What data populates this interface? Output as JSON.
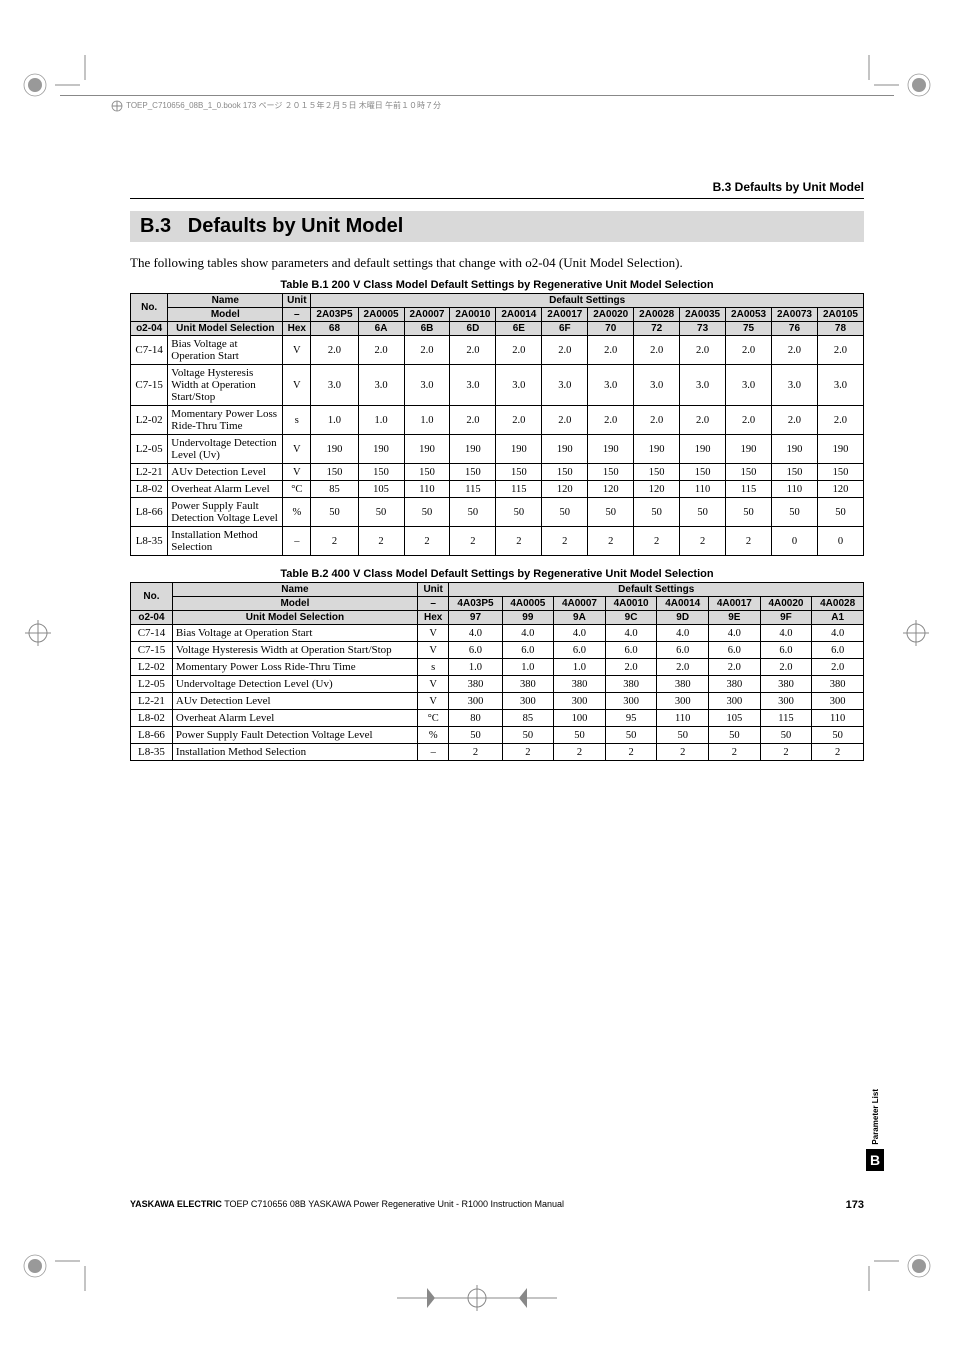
{
  "header": {
    "file_info": "TOEP_C710656_08B_1_0.book  173 ページ  ２０１５年２月５日  木曜日  午前１０時７分",
    "section_label": "B.3  Defaults by Unit Model"
  },
  "section": {
    "number": "B.3",
    "title": "Defaults by Unit Model",
    "intro": "The following tables show parameters and default settings that change with o2-04 (Unit Model Selection)."
  },
  "table1": {
    "caption": "Table B.1  200 V Class Model Default Settings by Regenerative Unit Model Selection",
    "col_no": "No.",
    "col_name": "Name",
    "col_unit": "Unit",
    "col_defaults": "Default Settings",
    "row_model_label": "Model",
    "row_model_unit": "–",
    "models": [
      "2A03P5",
      "2A0005",
      "2A0007",
      "2A0010",
      "2A0014",
      "2A0017",
      "2A0020",
      "2A0028",
      "2A0035",
      "2A0053",
      "2A0073",
      "2A0105"
    ],
    "row_o2_no": "o2-04",
    "row_o2_name": "Unit Model Selection",
    "row_o2_unit": "Hex",
    "hex": [
      "68",
      "6A",
      "6B",
      "6D",
      "6E",
      "6F",
      "70",
      "72",
      "73",
      "75",
      "76",
      "78"
    ],
    "rows": [
      {
        "no": "C7-14",
        "name": "Bias Voltage at Operation Start",
        "unit": "V",
        "v": [
          "2.0",
          "2.0",
          "2.0",
          "2.0",
          "2.0",
          "2.0",
          "2.0",
          "2.0",
          "2.0",
          "2.0",
          "2.0",
          "2.0"
        ]
      },
      {
        "no": "C7-15",
        "name": "Voltage Hysteresis Width at Operation Start/Stop",
        "unit": "V",
        "v": [
          "3.0",
          "3.0",
          "3.0",
          "3.0",
          "3.0",
          "3.0",
          "3.0",
          "3.0",
          "3.0",
          "3.0",
          "3.0",
          "3.0"
        ]
      },
      {
        "no": "L2-02",
        "name": "Momentary Power Loss Ride-Thru Time",
        "unit": "s",
        "v": [
          "1.0",
          "1.0",
          "1.0",
          "2.0",
          "2.0",
          "2.0",
          "2.0",
          "2.0",
          "2.0",
          "2.0",
          "2.0",
          "2.0"
        ]
      },
      {
        "no": "L2-05",
        "name": "Undervoltage Detection Level (Uv)",
        "unit": "V",
        "v": [
          "190",
          "190",
          "190",
          "190",
          "190",
          "190",
          "190",
          "190",
          "190",
          "190",
          "190",
          "190"
        ]
      },
      {
        "no": "L2-21",
        "name": "AUv Detection Level",
        "unit": "V",
        "v": [
          "150",
          "150",
          "150",
          "150",
          "150",
          "150",
          "150",
          "150",
          "150",
          "150",
          "150",
          "150"
        ]
      },
      {
        "no": "L8-02",
        "name": "Overheat Alarm Level",
        "unit": "°C",
        "v": [
          "85",
          "105",
          "110",
          "115",
          "115",
          "120",
          "120",
          "120",
          "110",
          "115",
          "110",
          "120"
        ]
      },
      {
        "no": "L8-66",
        "name": "Power Supply Fault Detection Voltage Level",
        "unit": "%",
        "v": [
          "50",
          "50",
          "50",
          "50",
          "50",
          "50",
          "50",
          "50",
          "50",
          "50",
          "50",
          "50"
        ]
      },
      {
        "no": "L8-35",
        "name": "Installation Method Selection",
        "unit": "–",
        "v": [
          "2",
          "2",
          "2",
          "2",
          "2",
          "2",
          "2",
          "2",
          "2",
          "2",
          "0",
          "0"
        ]
      }
    ]
  },
  "table2": {
    "caption": "Table B.2  400 V Class Model Default Settings by Regenerative Unit Model Selection",
    "col_no": "No.",
    "col_name": "Name",
    "col_unit": "Unit",
    "col_defaults": "Default Settings",
    "row_model_label": "Model",
    "row_model_unit": "–",
    "models": [
      "4A03P5",
      "4A0005",
      "4A0007",
      "4A0010",
      "4A0014",
      "4A0017",
      "4A0020",
      "4A0028"
    ],
    "row_o2_no": "o2-04",
    "row_o2_name": "Unit Model Selection",
    "row_o2_unit": "Hex",
    "hex": [
      "97",
      "99",
      "9A",
      "9C",
      "9D",
      "9E",
      "9F",
      "A1"
    ],
    "rows": [
      {
        "no": "C7-14",
        "name": "Bias Voltage at Operation Start",
        "unit": "V",
        "v": [
          "4.0",
          "4.0",
          "4.0",
          "4.0",
          "4.0",
          "4.0",
          "4.0",
          "4.0"
        ]
      },
      {
        "no": "C7-15",
        "name": "Voltage Hysteresis Width at Operation Start/Stop",
        "unit": "V",
        "v": [
          "6.0",
          "6.0",
          "6.0",
          "6.0",
          "6.0",
          "6.0",
          "6.0",
          "6.0"
        ]
      },
      {
        "no": "L2-02",
        "name": "Momentary Power Loss Ride-Thru Time",
        "unit": "s",
        "v": [
          "1.0",
          "1.0",
          "1.0",
          "2.0",
          "2.0",
          "2.0",
          "2.0",
          "2.0"
        ]
      },
      {
        "no": "L2-05",
        "name": "Undervoltage Detection Level (Uv)",
        "unit": "V",
        "v": [
          "380",
          "380",
          "380",
          "380",
          "380",
          "380",
          "380",
          "380"
        ]
      },
      {
        "no": "L2-21",
        "name": "AUv Detection Level",
        "unit": "V",
        "v": [
          "300",
          "300",
          "300",
          "300",
          "300",
          "300",
          "300",
          "300"
        ]
      },
      {
        "no": "L8-02",
        "name": "Overheat Alarm Level",
        "unit": "°C",
        "v": [
          "80",
          "85",
          "100",
          "95",
          "110",
          "105",
          "115",
          "110"
        ]
      },
      {
        "no": "L8-66",
        "name": "Power Supply Fault Detection Voltage Level",
        "unit": "%",
        "v": [
          "50",
          "50",
          "50",
          "50",
          "50",
          "50",
          "50",
          "50"
        ]
      },
      {
        "no": "L8-35",
        "name": "Installation Method Selection",
        "unit": "–",
        "v": [
          "2",
          "2",
          "2",
          "2",
          "2",
          "2",
          "2",
          "2"
        ]
      }
    ]
  },
  "sidebar": {
    "label": "Parameter List",
    "letter": "B"
  },
  "footer": {
    "left": "YASKAWA ELECTRIC TOEP C710656 08B YASKAWA Power Regenerative Unit - R1000 Instruction Manual",
    "page": "173"
  },
  "styling": {
    "header_bg": "#d9d9d9",
    "border": "#000000",
    "text": "#000000",
    "font_heading": "Arial, Helvetica, sans-serif",
    "font_body": "Times New Roman"
  }
}
